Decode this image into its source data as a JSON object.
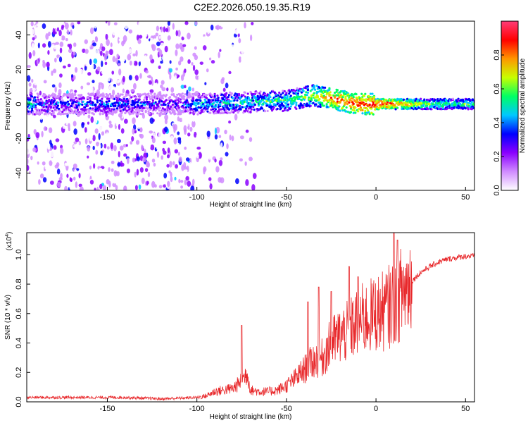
{
  "title": "C2E2.2026.050.19.35.R19",
  "chart_data": [
    {
      "type": "heatmap",
      "xlabel": "Height of straight line (km)",
      "ylabel": "Frequency (Hz)",
      "xlim": [
        -195,
        55
      ],
      "ylim": [
        -50,
        48
      ],
      "xticks": [
        -150,
        -100,
        -50,
        0,
        50
      ],
      "yticks": [
        -40,
        -20,
        0,
        20,
        40
      ],
      "colorbar": {
        "label": "Normalized spectral amplitude",
        "range": [
          0.0,
          1.0
        ],
        "ticks": [
          "0.0",
          "0.2",
          "0.4",
          "0.6",
          "0.8"
        ],
        "colors": [
          "#ffffff",
          "#d08bff",
          "#8a00ff",
          "#0000ff",
          "#00c8ff",
          "#00ff64",
          "#c8ff00",
          "#ff9600",
          "#ff0000",
          "#ff3c78"
        ]
      },
      "ridge": {
        "description_points": [
          {
            "x": -190,
            "y": 0,
            "amp": 0.35
          },
          {
            "x": -150,
            "y": 0,
            "amp": 0.4
          },
          {
            "x": -110,
            "y": 0,
            "amp": 0.3
          },
          {
            "x": -100,
            "y": 0,
            "amp": 0.45
          },
          {
            "x": -75,
            "y": 1,
            "amp": 0.5
          },
          {
            "x": -50,
            "y": 2,
            "amp": 0.55
          },
          {
            "x": -35,
            "y": 5,
            "amp": 0.65
          },
          {
            "x": -25,
            "y": 3,
            "amp": 0.8
          },
          {
            "x": -10,
            "y": 0,
            "amp": 0.85
          },
          {
            "x": 5,
            "y": 0,
            "amp": 0.9
          },
          {
            "x": 30,
            "y": 0,
            "amp": 0.6
          },
          {
            "x": 55,
            "y": 0,
            "amp": 0.55
          }
        ]
      }
    },
    {
      "type": "line",
      "xlabel": "Height of straight line (km)",
      "ylabel": "SNR (10 * v/v)",
      "multiplier": "(x10",
      "multiplier_exp": "4",
      "multiplier_close": ")",
      "xlim": [
        -195,
        55
      ],
      "ylim": [
        0,
        1.15
      ],
      "xticks": [
        -150,
        -100,
        -50,
        0,
        50
      ],
      "yticks": [
        "0.0",
        "0.2",
        "0.4",
        "0.6",
        "0.8",
        "1.0"
      ],
      "color": "#e8282b",
      "series": [
        {
          "name": "SNR",
          "x": [
            -195,
            -180,
            -160,
            -140,
            -120,
            -100,
            -95,
            -90,
            -85,
            -80,
            -75,
            -72,
            -70,
            -65,
            -60,
            -55,
            -50,
            -45,
            -40,
            -35,
            -30,
            -25,
            -20,
            -15,
            -10,
            -5,
            0,
            5,
            10,
            15,
            20,
            25,
            30,
            35,
            40,
            45,
            50,
            55
          ],
          "y": [
            0.03,
            0.03,
            0.03,
            0.03,
            0.02,
            0.03,
            0.04,
            0.07,
            0.08,
            0.09,
            0.14,
            0.2,
            0.08,
            0.07,
            0.07,
            0.08,
            0.11,
            0.16,
            0.22,
            0.28,
            0.3,
            0.4,
            0.45,
            0.48,
            0.55,
            0.57,
            0.6,
            0.62,
            0.68,
            0.75,
            0.82,
            0.88,
            0.92,
            0.95,
            0.97,
            0.98,
            0.99,
            0.99
          ]
        }
      ],
      "spikes": [
        {
          "x": -75,
          "y": 0.52
        },
        {
          "x": -38,
          "y": 0.68
        },
        {
          "x": -32,
          "y": 0.78
        },
        {
          "x": -25,
          "y": 0.75
        },
        {
          "x": -15,
          "y": 0.92
        },
        {
          "x": -10,
          "y": 0.85
        },
        {
          "x": 10,
          "y": 1.15
        },
        {
          "x": 12,
          "y": 1.1
        }
      ]
    }
  ]
}
